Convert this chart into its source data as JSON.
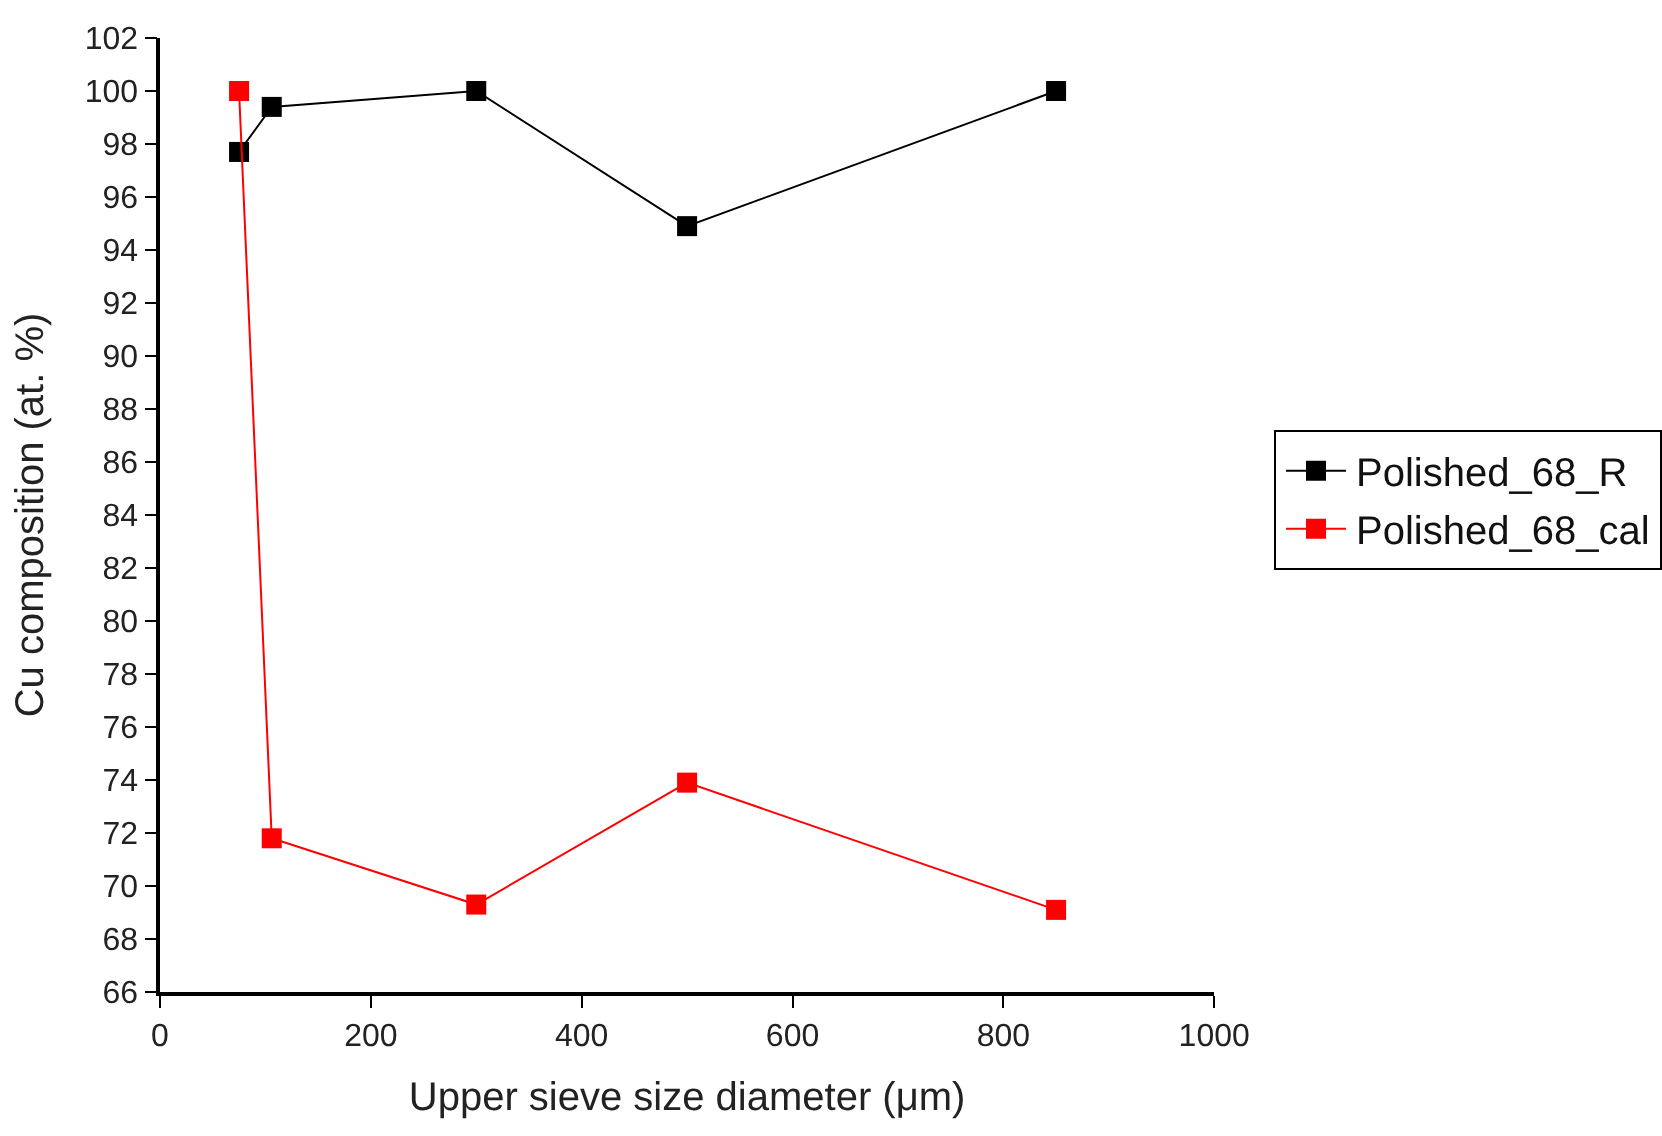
{
  "chart_data": {
    "type": "line",
    "xlabel": "Upper sieve size diameter (μm)",
    "ylabel": "Cu composition (at. %)",
    "xlim": [
      0,
      1000
    ],
    "xticks": [
      0,
      200,
      400,
      600,
      800,
      1000
    ],
    "ylim": [
      66,
      102
    ],
    "yticks": [
      66,
      68,
      70,
      72,
      74,
      76,
      78,
      80,
      82,
      84,
      86,
      88,
      90,
      92,
      94,
      96,
      98,
      100,
      102
    ],
    "marker": "square",
    "line_style": "solid",
    "legend": "right",
    "series": [
      {
        "name": "Polished_68_R",
        "color": "#000000",
        "x": [
          75,
          106,
          300,
          500,
          850
        ],
        "values": [
          97.7,
          99.4,
          100,
          94.9,
          100
        ]
      },
      {
        "name": "Polished_68_cal",
        "color": "#ff0000",
        "x": [
          75,
          106,
          300,
          500,
          850
        ],
        "values": [
          100,
          71.8,
          69.3,
          73.9,
          69.1
        ]
      }
    ]
  }
}
